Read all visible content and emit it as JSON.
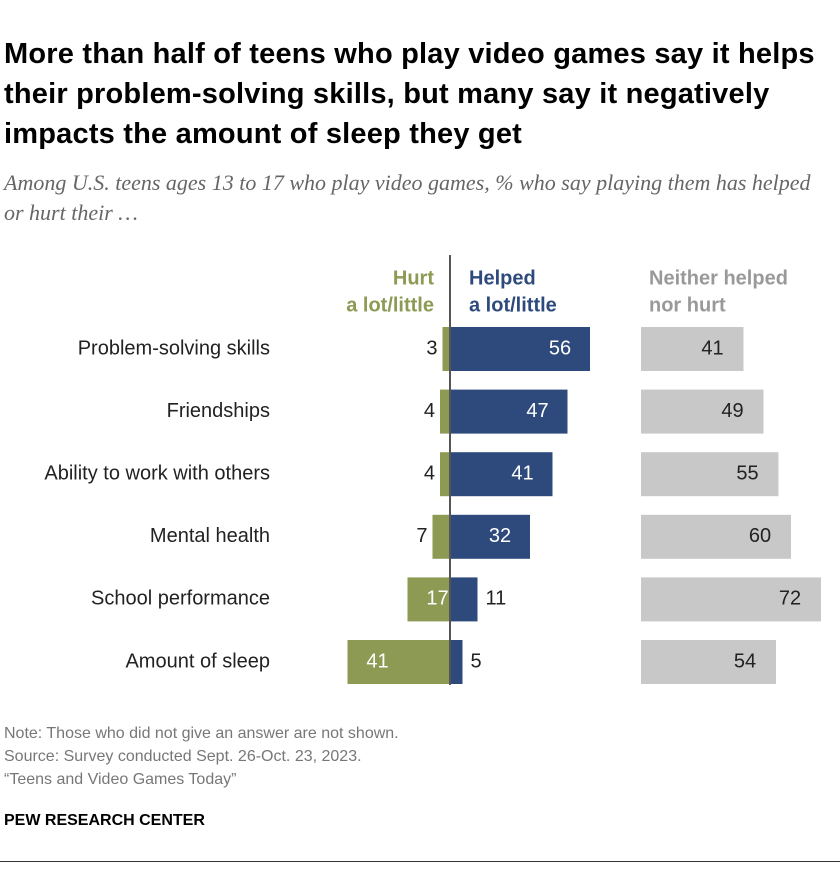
{
  "title": "More than half of teens who play video games say it helps their problem-solving skills, but many say it negatively impacts the amount of sleep they get",
  "subtitle": "Among U.S. teens ages 13 to 17 who play video games, % who say playing them has helped or hurt their …",
  "chart_data": {
    "type": "bar",
    "orientation": "horizontal",
    "layout": "diverging with separate neither column",
    "categories": [
      "Problem-solving skills",
      "Friendships",
      "Ability to work with others",
      "Mental health",
      "School performance",
      "Amount of sleep"
    ],
    "series": [
      {
        "name": "Hurt a lot/little",
        "label_lines": [
          "Hurt",
          "a lot/little"
        ],
        "color": "#8c9a53",
        "values": [
          3,
          4,
          4,
          7,
          17,
          41
        ]
      },
      {
        "name": "Helped a lot/little",
        "label_lines": [
          "Helped",
          "a lot/little"
        ],
        "color": "#2e4a7d",
        "values": [
          56,
          47,
          41,
          32,
          11,
          5
        ]
      },
      {
        "name": "Neither helped nor hurt",
        "label_lines": [
          "Neither helped",
          "nor hurt"
        ],
        "color": "#c8c8c8",
        "values": [
          41,
          49,
          55,
          60,
          72,
          54
        ]
      }
    ],
    "value_unit": "%",
    "grid": false,
    "legend": "column headers above bars"
  },
  "notes": [
    "Note: Those who did not give an answer are not shown.",
    "Source: Survey conducted Sept. 26-Oct. 23, 2023.",
    "“Teens and Video Games Today”"
  ],
  "brand": "PEW RESEARCH CENTER"
}
